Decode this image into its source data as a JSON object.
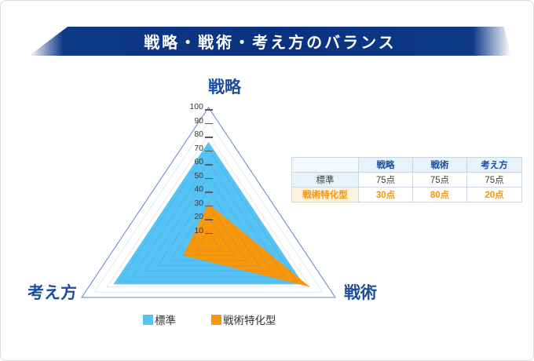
{
  "page": {
    "title": "戦略・戦術・考え方のバランス"
  },
  "chart_data": {
    "type": "radar",
    "title": "戦略・戦術・考え方のバランス",
    "axes": [
      "戦略",
      "戦術",
      "考え方"
    ],
    "scale": {
      "min": 0,
      "max": 100,
      "step": 10,
      "tick_labels": [
        "100",
        "90",
        "80",
        "70",
        "60",
        "50",
        "40",
        "30",
        "20",
        "10"
      ]
    },
    "grid": "on",
    "legend_position": "bottom",
    "series": [
      {
        "name": "標準",
        "color": "#55C3F6",
        "values": [
          75,
          75,
          75
        ]
      },
      {
        "name": "戦術特化型",
        "color": "#F8970B",
        "values": [
          30,
          80,
          20
        ]
      }
    ]
  },
  "table": {
    "headers": [
      "",
      "戦略",
      "戦術",
      "考え方"
    ],
    "rows": [
      {
        "label": "標準",
        "values": [
          "75点",
          "75点",
          "75点"
        ]
      },
      {
        "label": "戦術特化型",
        "values": [
          "30点",
          "80点",
          "20点"
        ]
      }
    ]
  },
  "legend": [
    {
      "label": "標準",
      "color": "#55C3F6"
    },
    {
      "label": "戦術特化型",
      "color": "#F8970B"
    }
  ],
  "colors": {
    "banner": "#0e3a87",
    "axis_label": "#1b4ea1",
    "grid_line": "#d9e6f5",
    "outer_outline": "#6388c6",
    "standard_fill": "#55C3F6",
    "specialized_fill": "#F8970B"
  }
}
